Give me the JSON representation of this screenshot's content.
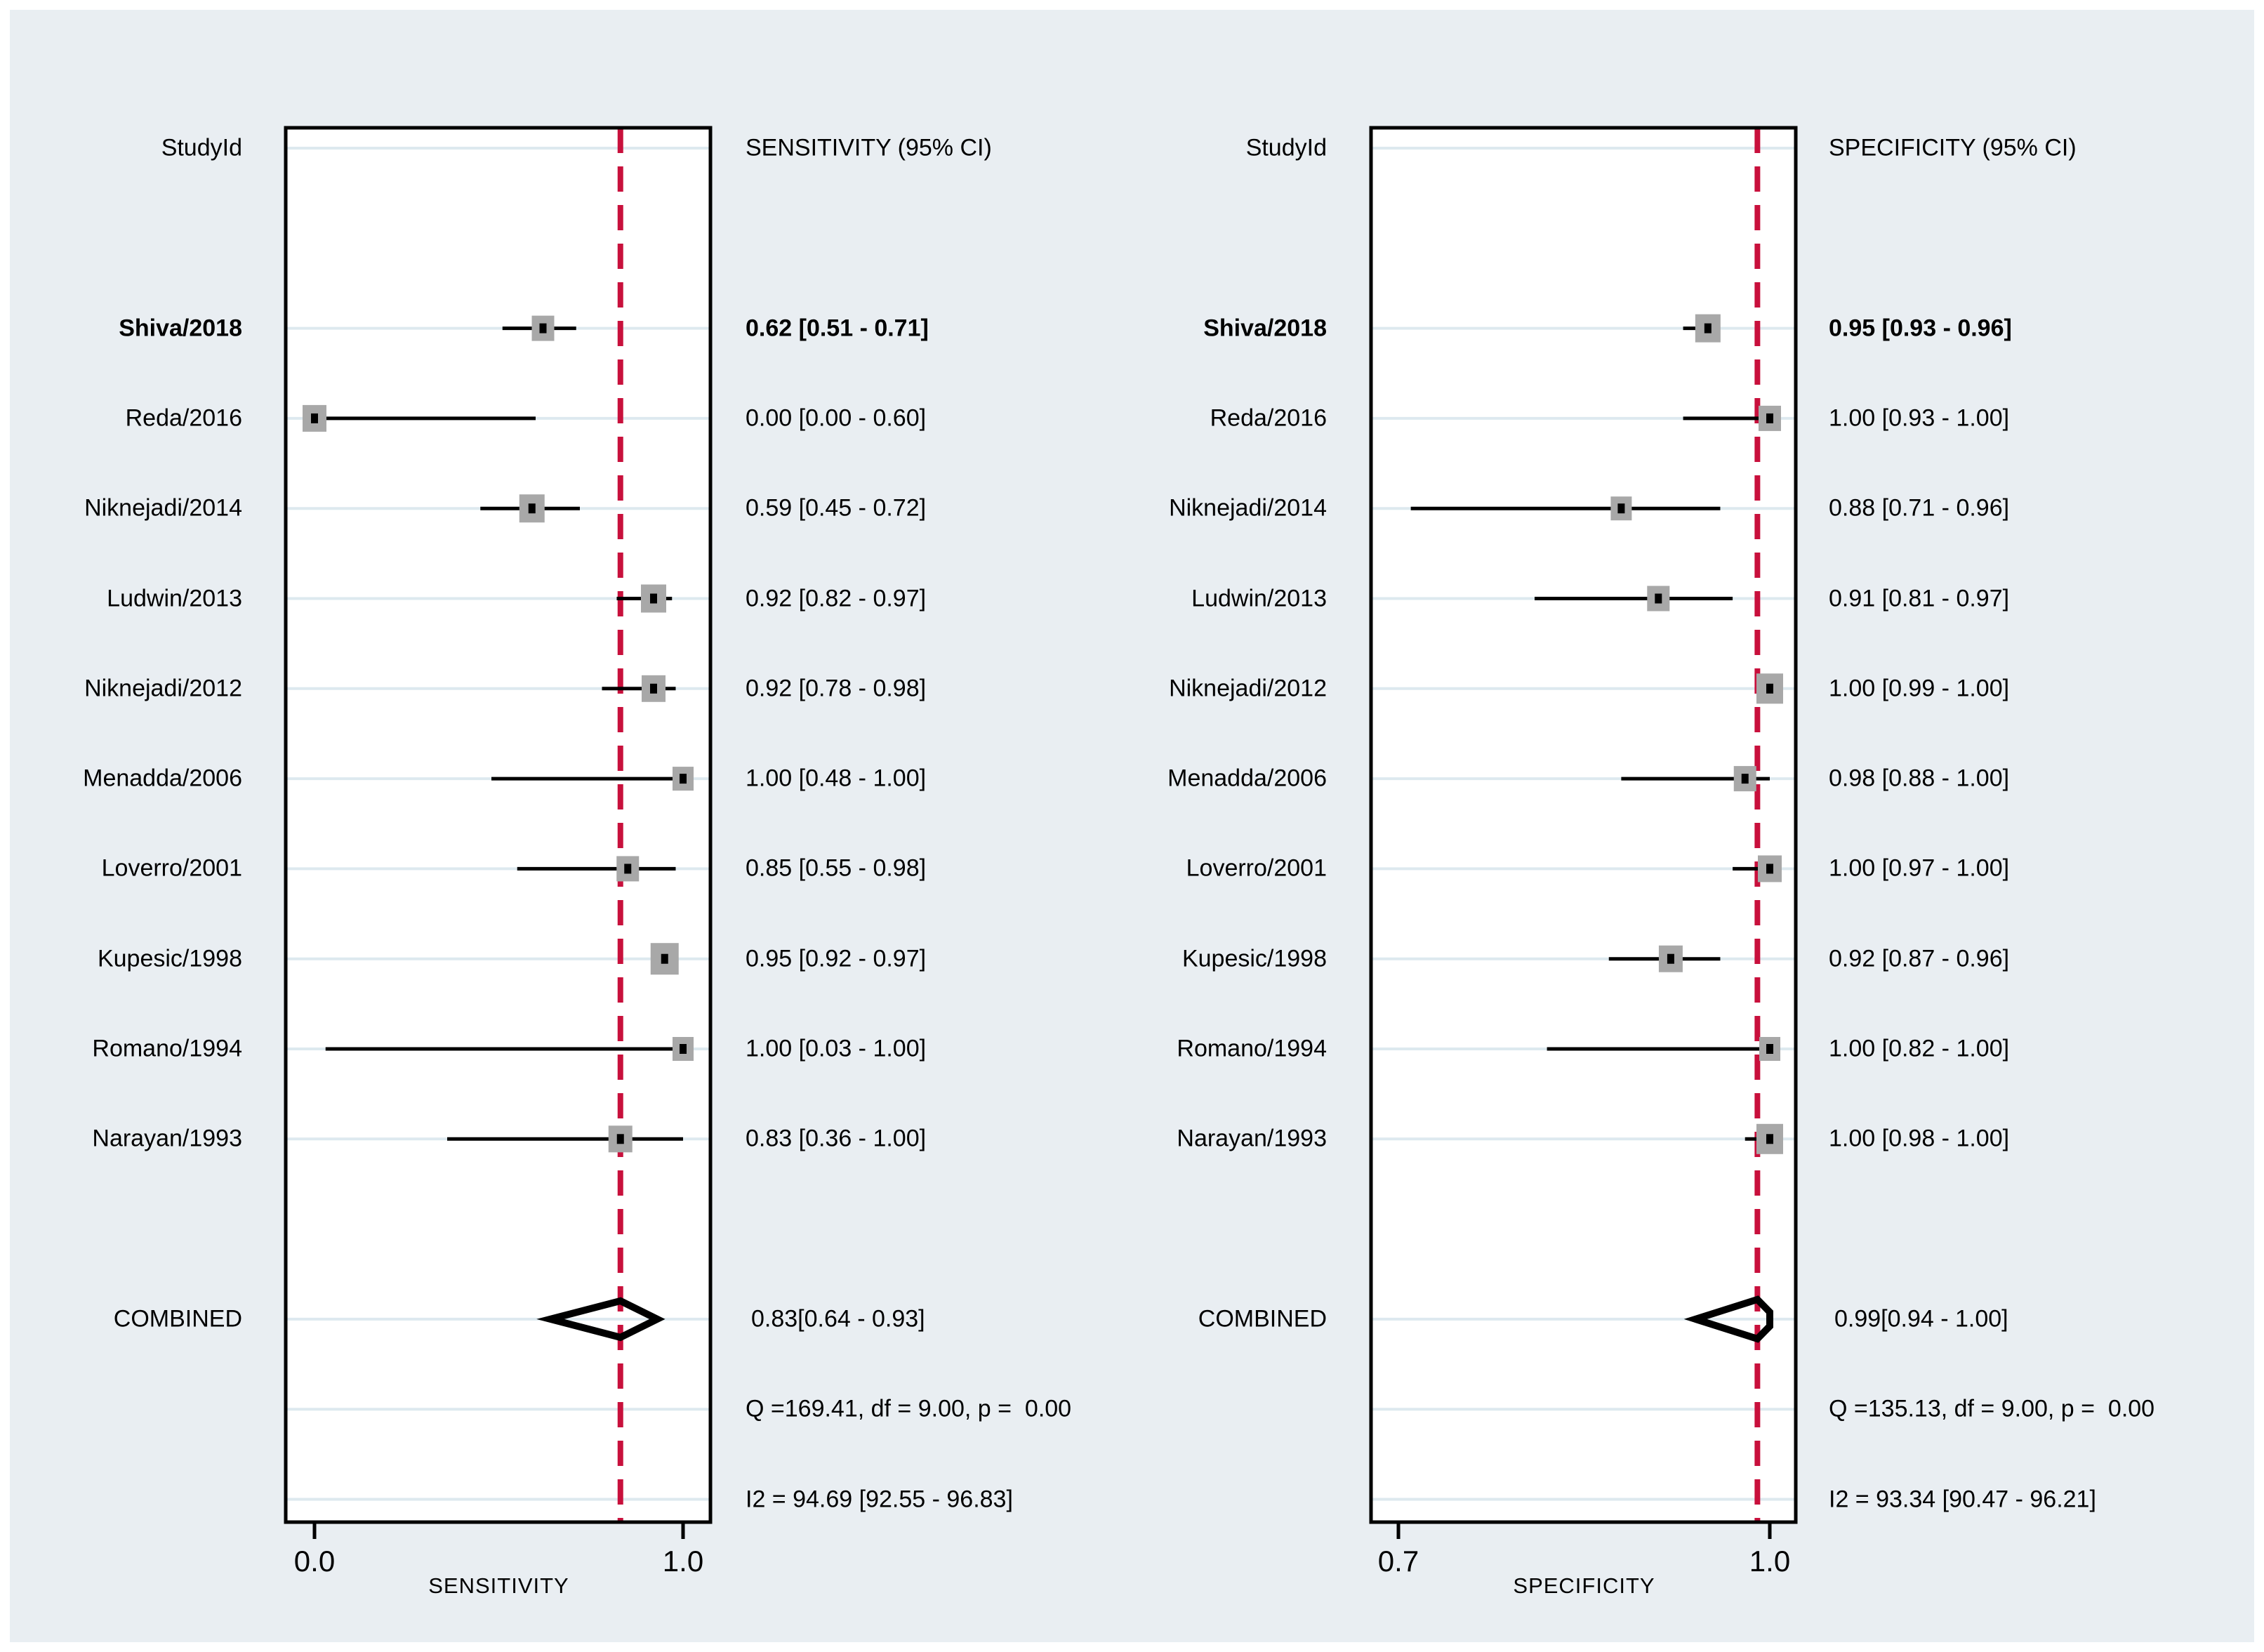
{
  "figure": {
    "margin_color": "#ffffff",
    "background": "#e9eef2"
  },
  "colors": {
    "plot_background": "#ffffff",
    "frame": "#000000",
    "gridline": "#dde9ef",
    "reference_line": "#c8103c",
    "ci_line": "#000000",
    "marker_fill": "#a8a8a8",
    "marker_dot": "#000000",
    "diamond_stroke": "#000000",
    "text": "#000000"
  },
  "chart_data": [
    {
      "type": "forest",
      "panel": "sensitivity",
      "study_col_header": "StudyId",
      "value_col_header": "SENSITIVITY (95% CI)",
      "xlabel": "SENSITIVITY",
      "xlim": [
        0.0,
        1.0
      ],
      "xticks": [
        {
          "value": 0.0,
          "label": "0.0"
        },
        {
          "value": 1.0,
          "label": "1.0"
        }
      ],
      "reference_line": 0.83,
      "grid": true,
      "studies": [
        {
          "label": "Shiva/2018",
          "est": 0.62,
          "lo": 0.51,
          "hi": 0.71,
          "ci_text": "0.62 [0.51 - 0.71]",
          "bold": true,
          "marker_size": 32
        },
        {
          "label": "Reda/2016",
          "est": 0.0,
          "lo": 0.0,
          "hi": 0.6,
          "ci_text": "0.00 [0.00 - 0.60]",
          "bold": false,
          "marker_size": 34
        },
        {
          "label": "Niknejadi/2014",
          "est": 0.59,
          "lo": 0.45,
          "hi": 0.72,
          "ci_text": "0.59 [0.45 - 0.72]",
          "bold": false,
          "marker_size": 36
        },
        {
          "label": "Ludwin/2013",
          "est": 0.92,
          "lo": 0.82,
          "hi": 0.97,
          "ci_text": "0.92 [0.82 - 0.97]",
          "bold": false,
          "marker_size": 36
        },
        {
          "label": "Niknejadi/2012",
          "est": 0.92,
          "lo": 0.78,
          "hi": 0.98,
          "ci_text": "0.92 [0.78 - 0.98]",
          "bold": false,
          "marker_size": 34
        },
        {
          "label": "Menadda/2006",
          "est": 1.0,
          "lo": 0.48,
          "hi": 1.0,
          "ci_text": "1.00 [0.48 - 1.00]",
          "bold": false,
          "marker_size": 30
        },
        {
          "label": "Loverro/2001",
          "est": 0.85,
          "lo": 0.55,
          "hi": 0.98,
          "ci_text": "0.85 [0.55 - 0.98]",
          "bold": false,
          "marker_size": 32
        },
        {
          "label": "Kupesic/1998",
          "est": 0.95,
          "lo": 0.92,
          "hi": 0.97,
          "ci_text": "0.95 [0.92 - 0.97]",
          "bold": false,
          "marker_size": 40
        },
        {
          "label": "Romano/1994",
          "est": 1.0,
          "lo": 0.03,
          "hi": 1.0,
          "ci_text": "1.00 [0.03 - 1.00]",
          "bold": false,
          "marker_size": 30
        },
        {
          "label": "Narayan/1993",
          "est": 0.83,
          "lo": 0.36,
          "hi": 1.0,
          "ci_text": "0.83 [0.36 - 1.00]",
          "bold": false,
          "marker_size": 34
        }
      ],
      "combined": {
        "label": "COMBINED",
        "est": 0.83,
        "lo": 0.64,
        "hi": 0.93,
        "ci_text": "0.83[0.64 - 0.93]",
        "clipped": false
      },
      "heterogeneity": {
        "q_text": "Q =169.41, df = 9.00, p =  0.00",
        "i2_text": "I2 = 94.69 [92.55 - 96.83]"
      }
    },
    {
      "type": "forest",
      "panel": "specificity",
      "study_col_header": "StudyId",
      "value_col_header": "SPECIFICITY (95% CI)",
      "xlabel": "SPECIFICITY",
      "xlim": [
        0.7,
        1.0
      ],
      "xticks": [
        {
          "value": 0.7,
          "label": "0.7"
        },
        {
          "value": 1.0,
          "label": "1.0"
        }
      ],
      "reference_line": 0.99,
      "grid": true,
      "studies": [
        {
          "label": "Shiva/2018",
          "est": 0.95,
          "lo": 0.93,
          "hi": 0.96,
          "ci_text": "0.95 [0.93 - 0.96]",
          "bold": true,
          "marker_size": 36
        },
        {
          "label": "Reda/2016",
          "est": 1.0,
          "lo": 0.93,
          "hi": 1.0,
          "ci_text": "1.00 [0.93 - 1.00]",
          "bold": false,
          "marker_size": 32
        },
        {
          "label": "Niknejadi/2014",
          "est": 0.88,
          "lo": 0.71,
          "hi": 0.96,
          "ci_text": "0.88 [0.71 - 0.96]",
          "bold": false,
          "marker_size": 30
        },
        {
          "label": "Ludwin/2013",
          "est": 0.91,
          "lo": 0.81,
          "hi": 0.97,
          "ci_text": "0.91 [0.81 - 0.97]",
          "bold": false,
          "marker_size": 32
        },
        {
          "label": "Niknejadi/2012",
          "est": 1.0,
          "lo": 0.99,
          "hi": 1.0,
          "ci_text": "1.00 [0.99 - 1.00]",
          "bold": false,
          "marker_size": 38
        },
        {
          "label": "Menadda/2006",
          "est": 0.98,
          "lo": 0.88,
          "hi": 1.0,
          "ci_text": "0.98 [0.88 - 1.00]",
          "bold": false,
          "marker_size": 32
        },
        {
          "label": "Loverro/2001",
          "est": 1.0,
          "lo": 0.97,
          "hi": 1.0,
          "ci_text": "1.00 [0.97 - 1.00]",
          "bold": false,
          "marker_size": 34
        },
        {
          "label": "Kupesic/1998",
          "est": 0.92,
          "lo": 0.87,
          "hi": 0.96,
          "ci_text": "0.92 [0.87 - 0.96]",
          "bold": false,
          "marker_size": 34
        },
        {
          "label": "Romano/1994",
          "est": 1.0,
          "lo": 0.82,
          "hi": 1.0,
          "ci_text": "1.00 [0.82 - 1.00]",
          "bold": false,
          "marker_size": 30
        },
        {
          "label": "Narayan/1993",
          "est": 1.0,
          "lo": 0.98,
          "hi": 1.0,
          "ci_text": "1.00 [0.98 - 1.00]",
          "bold": false,
          "marker_size": 38
        }
      ],
      "combined": {
        "label": "COMBINED",
        "est": 0.99,
        "lo": 0.94,
        "hi": 1.0,
        "ci_text": "0.99[0.94 - 1.00]",
        "clipped": true
      },
      "heterogeneity": {
        "q_text": "Q =135.13, df = 9.00, p =  0.00",
        "i2_text": "I2 = 93.34 [90.47 - 96.21]"
      }
    }
  ]
}
